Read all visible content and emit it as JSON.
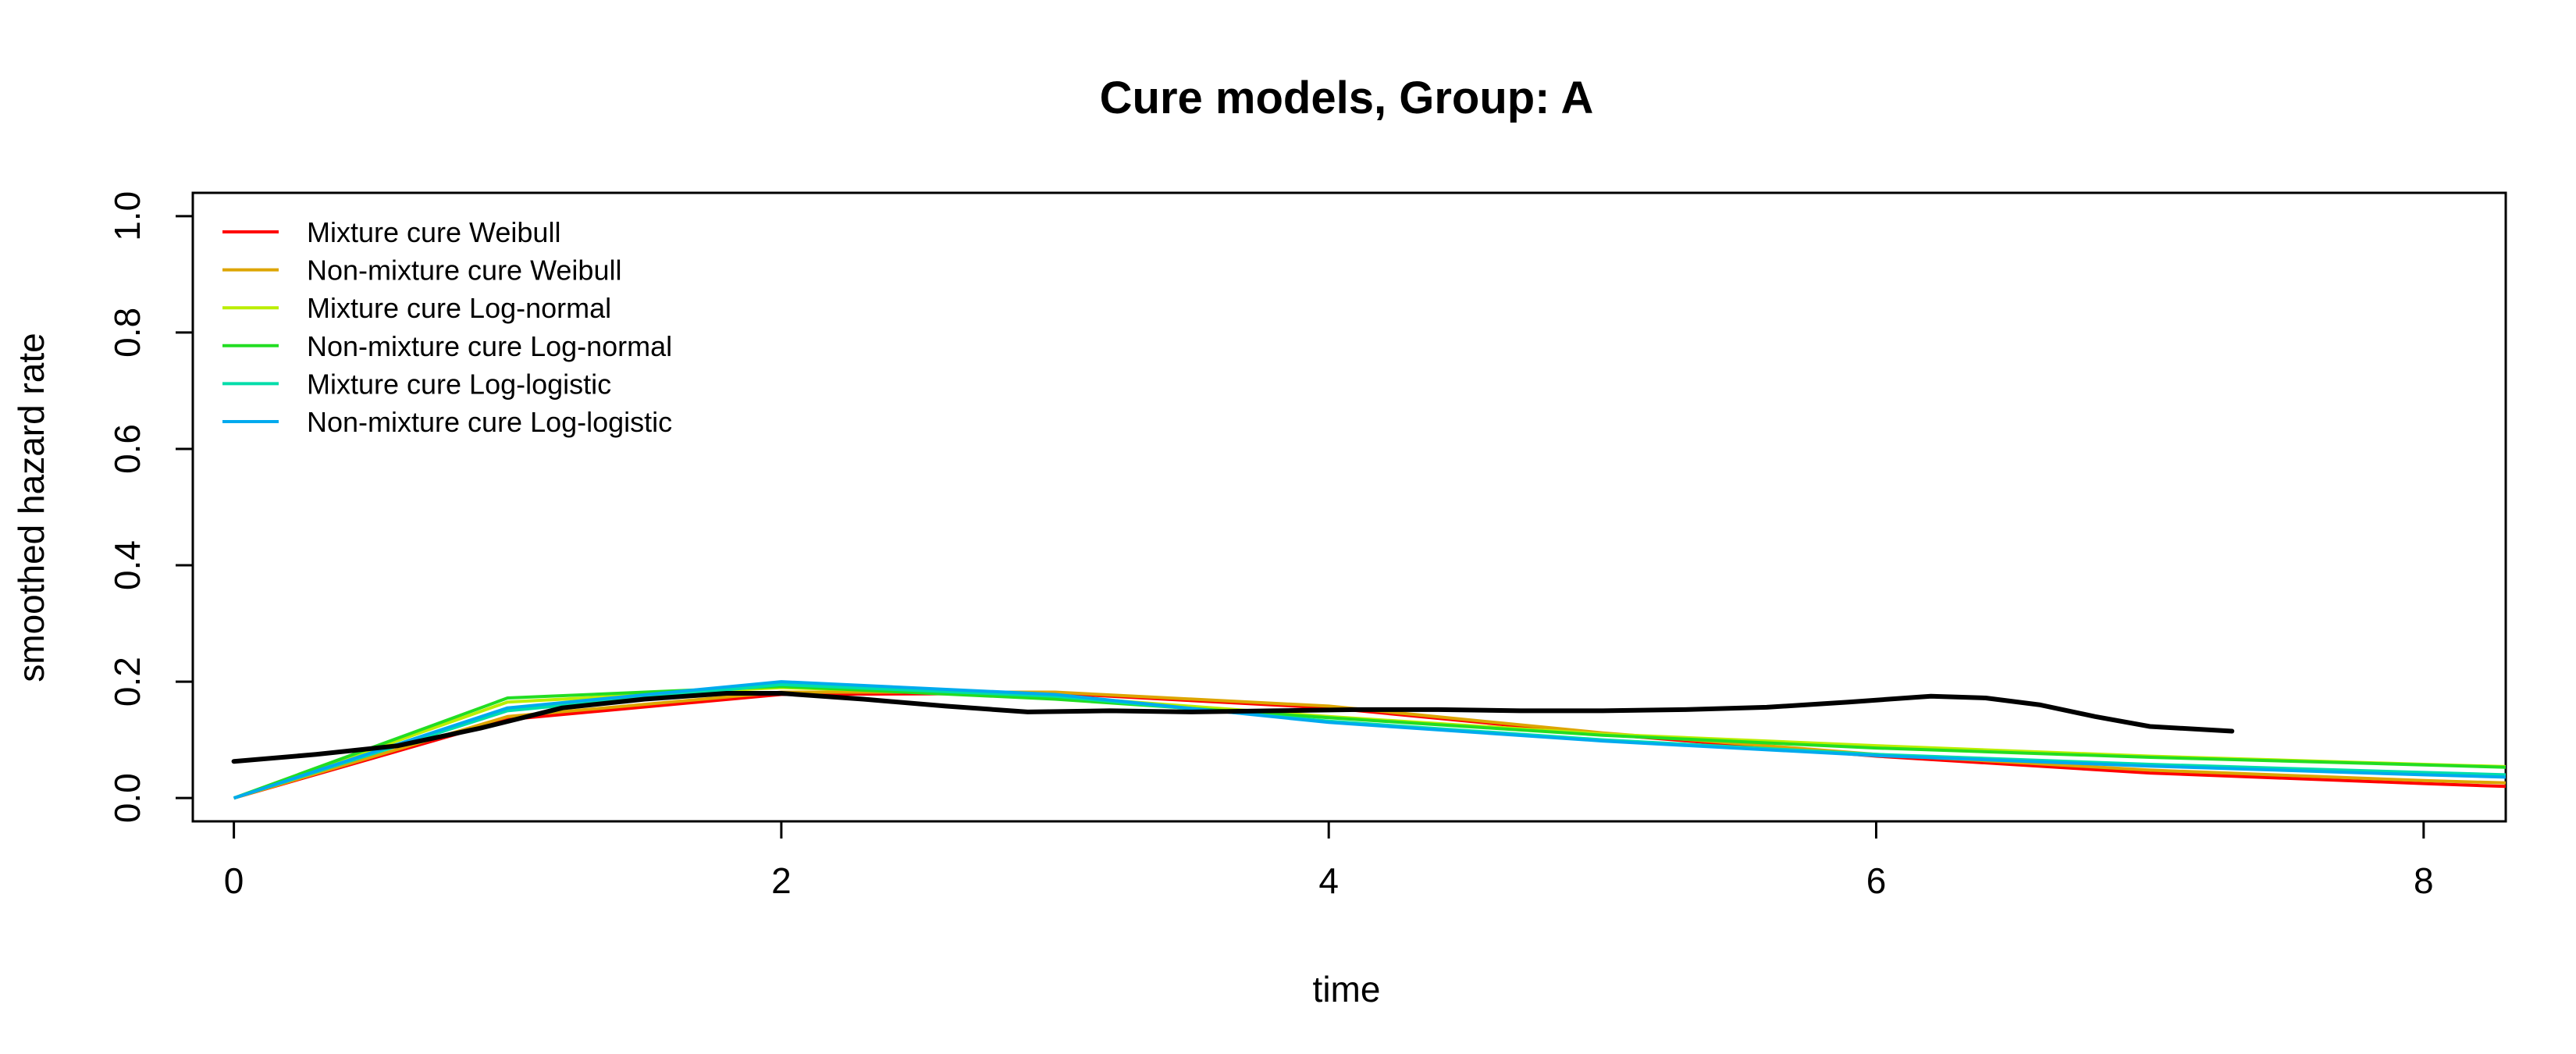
{
  "chart_data": {
    "type": "line",
    "title": "Cure models, Group: A",
    "xlabel": "time",
    "ylabel": "smoothed hazard rate",
    "xlim": [
      -0.15,
      8.3
    ],
    "ylim": [
      -0.04,
      1.04
    ],
    "xticks": [
      0,
      2,
      4,
      6,
      8
    ],
    "yticks": [
      0.0,
      0.2,
      0.4,
      0.6,
      0.8,
      1.0
    ],
    "xtick_labels": [
      "0",
      "2",
      "4",
      "6",
      "8"
    ],
    "ytick_labels": [
      "0.0",
      "0.2",
      "0.4",
      "0.6",
      "0.8",
      "1.0"
    ],
    "grid": false,
    "legend_position": "top-left",
    "observed": {
      "color": "#000000",
      "x": [
        0,
        0.3,
        0.6,
        0.9,
        1.2,
        1.5,
        1.8,
        2.0,
        2.3,
        2.6,
        2.9,
        3.2,
        3.5,
        3.8,
        4.1,
        4.4,
        4.7,
        5.0,
        5.3,
        5.6,
        5.9,
        6.2,
        6.4,
        6.6,
        6.8,
        7.0,
        7.3
      ],
      "y": [
        0.063,
        0.075,
        0.09,
        0.12,
        0.155,
        0.17,
        0.18,
        0.18,
        0.17,
        0.158,
        0.148,
        0.15,
        0.148,
        0.15,
        0.152,
        0.152,
        0.15,
        0.15,
        0.152,
        0.156,
        0.165,
        0.175,
        0.172,
        0.16,
        0.14,
        0.123,
        0.115
      ]
    },
    "series": [
      {
        "name": "Mixture cure Weibull",
        "color": "#FF0000",
        "x": [
          0,
          1,
          2,
          3,
          4,
          5,
          6,
          7,
          8,
          8.3
        ],
        "y": [
          0.0,
          0.135,
          0.178,
          0.18,
          0.155,
          0.11,
          0.072,
          0.043,
          0.025,
          0.02
        ]
      },
      {
        "name": "Non-mixture cure Weibull",
        "color": "#DDA500",
        "x": [
          0,
          1,
          2,
          3,
          4,
          5,
          6,
          7,
          8,
          8.3
        ],
        "y": [
          0.0,
          0.14,
          0.182,
          0.182,
          0.158,
          0.112,
          0.075,
          0.048,
          0.03,
          0.026
        ]
      },
      {
        "name": "Mixture cure Log-normal",
        "color": "#BBEE00",
        "x": [
          0,
          1,
          2,
          3,
          4,
          5,
          6,
          7,
          8,
          8.3
        ],
        "y": [
          0.0,
          0.165,
          0.19,
          0.175,
          0.14,
          0.11,
          0.09,
          0.072,
          0.058,
          0.054
        ]
      },
      {
        "name": "Non-mixture cure Log-normal",
        "color": "#22DD22",
        "x": [
          0,
          1,
          2,
          3,
          4,
          5,
          6,
          7,
          8,
          8.3
        ],
        "y": [
          0.0,
          0.172,
          0.192,
          0.17,
          0.138,
          0.108,
          0.086,
          0.07,
          0.057,
          0.053
        ]
      },
      {
        "name": "Mixture cure Log-logistic",
        "color": "#00DDAA",
        "x": [
          0,
          1,
          2,
          3,
          4,
          5,
          6,
          7,
          8,
          8.3
        ],
        "y": [
          0.0,
          0.15,
          0.195,
          0.175,
          0.132,
          0.1,
          0.075,
          0.058,
          0.044,
          0.04
        ]
      },
      {
        "name": "Non-mixture cure Log-logistic",
        "color": "#00AAEE",
        "x": [
          0,
          1,
          2,
          3,
          4,
          5,
          6,
          7,
          8,
          8.3
        ],
        "y": [
          0.0,
          0.155,
          0.2,
          0.178,
          0.13,
          0.098,
          0.073,
          0.055,
          0.04,
          0.036
        ]
      }
    ]
  }
}
